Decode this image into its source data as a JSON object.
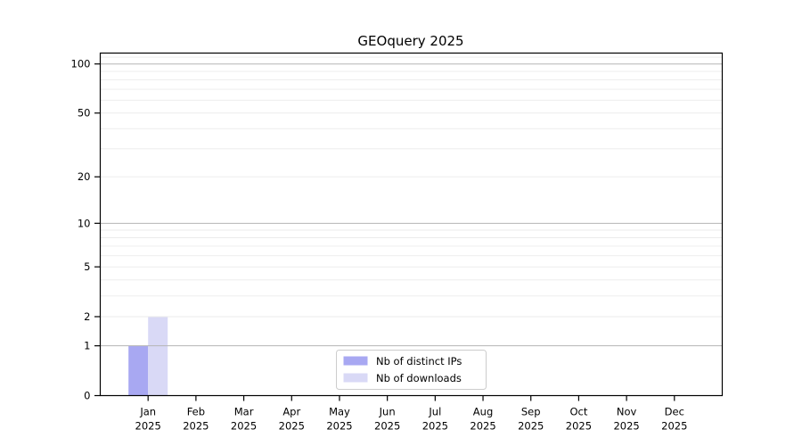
{
  "chart_data": {
    "type": "bar",
    "title": "GEOquery 2025",
    "categories": [
      "Jan",
      "Feb",
      "Mar",
      "Apr",
      "May",
      "Jun",
      "Jul",
      "Aug",
      "Sep",
      "Oct",
      "Nov",
      "Dec"
    ],
    "year": "2025",
    "series": [
      {
        "name": "Nb of distinct IPs",
        "color": "#a8a8f2",
        "values": [
          1,
          0,
          0,
          0,
          0,
          0,
          0,
          0,
          0,
          0,
          0,
          0
        ]
      },
      {
        "name": "Nb of downloads",
        "color": "#d9d9f6",
        "values": [
          2,
          0,
          0,
          0,
          0,
          0,
          0,
          0,
          0,
          0,
          0,
          0
        ]
      }
    ],
    "yscale": "log1p",
    "ylim": [
      0,
      115
    ],
    "ytick_values": [
      0,
      1,
      2,
      5,
      10,
      20,
      50,
      100
    ],
    "ytick_labels": [
      "0",
      "1",
      "2",
      "5",
      "10",
      "20",
      "50",
      "100"
    ],
    "major_gridlines": [
      1,
      10,
      100
    ],
    "minor_gridlines": [
      2,
      3,
      4,
      5,
      6,
      7,
      8,
      9,
      20,
      30,
      40,
      50,
      60,
      70,
      80,
      90,
      110
    ],
    "grid": true,
    "legend_position": "bottom-center"
  },
  "colors": {
    "axis": "#000000",
    "major_grid": "#b5b5b5",
    "minor_grid": "#ebebeb",
    "legend_border": "#cccccc",
    "background": "#ffffff"
  }
}
